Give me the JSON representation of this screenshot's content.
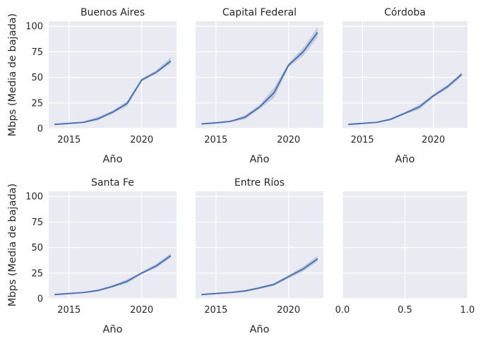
{
  "figure": {
    "ylabel": "Mbps (Media de bajada)",
    "xlabel": "Año",
    "line_color": "#4c72b0",
    "band_color": "#4c72b0",
    "background_color": "#eaeaf2"
  },
  "chart_data": [
    {
      "type": "line",
      "title": "Buenos Aires",
      "xlabel": "",
      "ylabel": "Mbps (Media de bajada)",
      "xlim": [
        2013.6,
        2022.4
      ],
      "ylim": [
        0,
        105
      ],
      "xticks": [
        2015,
        2020
      ],
      "yticks": [
        0,
        25,
        50,
        75,
        100
      ],
      "xtick_labels": [
        "2015",
        "2020"
      ],
      "ytick_labels": [
        "0",
        "25",
        "50",
        "75",
        "100"
      ],
      "grid": true,
      "series": [
        {
          "x": [
            2014,
            2015,
            2016,
            2017,
            2018,
            2019,
            2020,
            2021,
            2022
          ],
          "y": [
            4,
            5,
            6,
            9.5,
            16,
            24.5,
            47.5,
            55,
            66
          ],
          "ci_low": [
            3.5,
            4.5,
            5.5,
            8,
            14.5,
            22,
            46,
            53.5,
            63.5
          ],
          "ci_high": [
            4.5,
            5.5,
            7,
            11.5,
            17.5,
            27,
            49,
            57,
            69.5
          ]
        }
      ]
    },
    {
      "type": "line",
      "title": "Capital Federal",
      "xlabel": "",
      "ylabel": "",
      "xlim": [
        2013.6,
        2022.4
      ],
      "ylim": [
        0,
        105
      ],
      "xticks": [
        2015,
        2020
      ],
      "yticks": [
        0,
        25,
        50,
        75,
        100
      ],
      "xtick_labels": [
        "2015",
        "2020"
      ],
      "ytick_labels": [],
      "grid": true,
      "series": [
        {
          "x": [
            2014,
            2015,
            2016,
            2017,
            2018,
            2019,
            2020,
            2021,
            2022
          ],
          "y": [
            4.5,
            5.5,
            7,
            11,
            21,
            35,
            62,
            75,
            94
          ],
          "ci_low": [
            4,
            5,
            6.5,
            9,
            19,
            30,
            60,
            71,
            89
          ],
          "ci_high": [
            5,
            6,
            7.5,
            13,
            23,
            40,
            64,
            79,
            99
          ]
        }
      ]
    },
    {
      "type": "line",
      "title": "Córdoba",
      "xlabel": "",
      "ylabel": "",
      "xlim": [
        2013.6,
        2022.4
      ],
      "ylim": [
        0,
        105
      ],
      "xticks": [
        2015,
        2020
      ],
      "yticks": [
        0,
        25,
        50,
        75,
        100
      ],
      "xtick_labels": [
        "2015",
        "2020"
      ],
      "ytick_labels": [],
      "grid": true,
      "series": [
        {
          "x": [
            2014,
            2015,
            2016,
            2017,
            2018,
            2019,
            2020,
            2021,
            2022
          ],
          "y": [
            4,
            5,
            6,
            9,
            15,
            21,
            32,
            41,
            53
          ],
          "ci_low": [
            3.5,
            4.5,
            5.5,
            8,
            14,
            18.5,
            30.5,
            39,
            51
          ],
          "ci_high": [
            4.5,
            5.5,
            6.5,
            10,
            16,
            23.5,
            33.5,
            43,
            55
          ]
        }
      ]
    },
    {
      "type": "line",
      "title": "Santa Fe",
      "xlabel": "",
      "ylabel": "Mbps (Media de bajada)",
      "xlim": [
        2013.6,
        2022.4
      ],
      "ylim": [
        0,
        105
      ],
      "xticks": [
        2015,
        2020
      ],
      "yticks": [
        0,
        25,
        50,
        75,
        100
      ],
      "xtick_labels": [
        "2015",
        "2020"
      ],
      "ytick_labels": [
        "0",
        "25",
        "50",
        "75",
        "100"
      ],
      "grid": true,
      "series": [
        {
          "x": [
            2014,
            2015,
            2016,
            2017,
            2018,
            2019,
            2020,
            2021,
            2022
          ],
          "y": [
            4,
            5,
            6,
            8,
            12,
            17,
            25,
            32,
            42
          ],
          "ci_low": [
            3.5,
            4.5,
            5.5,
            7,
            11,
            15,
            24,
            30,
            40
          ],
          "ci_high": [
            4.5,
            5.5,
            6.5,
            9,
            13,
            19,
            26,
            34,
            44.5
          ]
        }
      ]
    },
    {
      "type": "line",
      "title": "Entre Ríos",
      "xlabel": "",
      "ylabel": "",
      "xlim": [
        2013.6,
        2022.4
      ],
      "ylim": [
        0,
        105
      ],
      "xticks": [
        2015,
        2020
      ],
      "yticks": [
        0,
        25,
        50,
        75,
        100
      ],
      "xtick_labels": [
        "2015",
        "2020"
      ],
      "ytick_labels": [],
      "grid": true,
      "series": [
        {
          "x": [
            2014,
            2015,
            2016,
            2017,
            2018,
            2019,
            2020,
            2021,
            2022
          ],
          "y": [
            4,
            5,
            6,
            7.5,
            10.5,
            14,
            21.5,
            29,
            39
          ],
          "ci_low": [
            3.5,
            4.5,
            5.5,
            6.5,
            9.5,
            12.5,
            20,
            26.5,
            36.5
          ],
          "ci_high": [
            4.5,
            5.5,
            6.5,
            8.5,
            11.5,
            15,
            23,
            31.5,
            42
          ]
        }
      ]
    },
    {
      "type": "line",
      "title": "",
      "xlabel": "",
      "ylabel": "",
      "xlim": [
        0,
        1
      ],
      "ylim": [
        0,
        105
      ],
      "xticks": [
        0,
        0.5,
        1
      ],
      "yticks": [
        0,
        25,
        50,
        75,
        100
      ],
      "xtick_labels": [
        "0.0",
        "0.5",
        "1.0"
      ],
      "ytick_labels": [],
      "grid": true,
      "series": []
    }
  ]
}
